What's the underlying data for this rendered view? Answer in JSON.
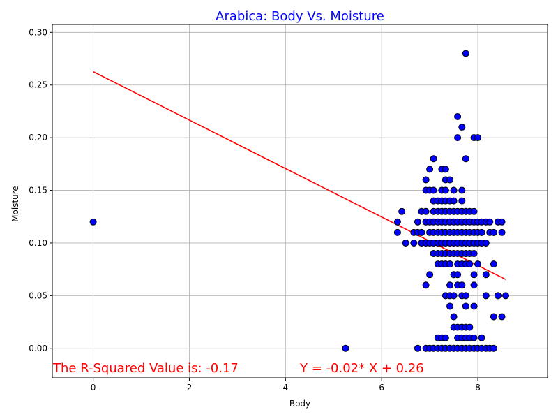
{
  "chart_data": {
    "type": "scatter",
    "title": "Arabica: Body Vs. Moisture",
    "xlabel": "Body",
    "ylabel": "Moisture",
    "xlim": [
      -0.85,
      9.45
    ],
    "ylim": [
      -0.028,
      0.3075
    ],
    "xticks": [
      0,
      2,
      4,
      6,
      8
    ],
    "xtick_labels": [
      "0",
      "2",
      "4",
      "6",
      "8"
    ],
    "yticks": [
      0.0,
      0.05,
      0.1,
      0.15,
      0.2,
      0.25,
      0.3
    ],
    "ytick_labels": [
      "0.00",
      "0.05",
      "0.10",
      "0.15",
      "0.20",
      "0.25",
      "0.30"
    ],
    "grid": true,
    "colors": {
      "points_fill": "#0000ff",
      "points_edge": "#000000",
      "line": "#ff0000",
      "title": "#0000ff",
      "annotation": "#ff0000",
      "grid": "#b0b0b0"
    },
    "regression": {
      "slope": -0.023,
      "intercept": 0.2627,
      "x_range": [
        0,
        8.58
      ]
    },
    "annotations": {
      "r_squared": "The R-Squared Value is: -0.17",
      "equation": "Y = -0.02* X + 0.26"
    },
    "points": [
      [
        0,
        0.12
      ],
      [
        5.25,
        0.0
      ],
      [
        6.33,
        0.12
      ],
      [
        6.33,
        0.11
      ],
      [
        6.42,
        0.13
      ],
      [
        6.5,
        0.1
      ],
      [
        6.67,
        0.11
      ],
      [
        6.67,
        0.1
      ],
      [
        6.75,
        0.12
      ],
      [
        6.75,
        0.11
      ],
      [
        6.75,
        0.0
      ],
      [
        6.83,
        0.13
      ],
      [
        6.83,
        0.11
      ],
      [
        6.83,
        0.1
      ],
      [
        6.92,
        0.16
      ],
      [
        6.92,
        0.15
      ],
      [
        6.92,
        0.13
      ],
      [
        6.92,
        0.12
      ],
      [
        6.92,
        0.1
      ],
      [
        6.92,
        0.06
      ],
      [
        6.92,
        0.0
      ],
      [
        7.0,
        0.17
      ],
      [
        7.0,
        0.15
      ],
      [
        7.0,
        0.12
      ],
      [
        7.0,
        0.11
      ],
      [
        7.0,
        0.1
      ],
      [
        7.0,
        0.07
      ],
      [
        7.0,
        0.0
      ],
      [
        7.08,
        0.18
      ],
      [
        7.08,
        0.15
      ],
      [
        7.08,
        0.14
      ],
      [
        7.08,
        0.13
      ],
      [
        7.08,
        0.12
      ],
      [
        7.08,
        0.11
      ],
      [
        7.08,
        0.1
      ],
      [
        7.08,
        0.09
      ],
      [
        7.08,
        0.0
      ],
      [
        7.17,
        0.14
      ],
      [
        7.17,
        0.13
      ],
      [
        7.17,
        0.12
      ],
      [
        7.17,
        0.11
      ],
      [
        7.17,
        0.1
      ],
      [
        7.17,
        0.09
      ],
      [
        7.17,
        0.08
      ],
      [
        7.17,
        0.01
      ],
      [
        7.17,
        0.0
      ],
      [
        7.25,
        0.17
      ],
      [
        7.25,
        0.15
      ],
      [
        7.25,
        0.14
      ],
      [
        7.25,
        0.13
      ],
      [
        7.25,
        0.12
      ],
      [
        7.25,
        0.11
      ],
      [
        7.25,
        0.1
      ],
      [
        7.25,
        0.09
      ],
      [
        7.25,
        0.08
      ],
      [
        7.25,
        0.01
      ],
      [
        7.25,
        0.0
      ],
      [
        7.33,
        0.17
      ],
      [
        7.33,
        0.16
      ],
      [
        7.33,
        0.15
      ],
      [
        7.33,
        0.14
      ],
      [
        7.33,
        0.13
      ],
      [
        7.33,
        0.12
      ],
      [
        7.33,
        0.11
      ],
      [
        7.33,
        0.1
      ],
      [
        7.33,
        0.09
      ],
      [
        7.33,
        0.08
      ],
      [
        7.33,
        0.05
      ],
      [
        7.33,
        0.01
      ],
      [
        7.33,
        0.0
      ],
      [
        7.42,
        0.16
      ],
      [
        7.42,
        0.14
      ],
      [
        7.42,
        0.13
      ],
      [
        7.42,
        0.12
      ],
      [
        7.42,
        0.11
      ],
      [
        7.42,
        0.1
      ],
      [
        7.42,
        0.09
      ],
      [
        7.42,
        0.08
      ],
      [
        7.42,
        0.06
      ],
      [
        7.42,
        0.05
      ],
      [
        7.42,
        0.04
      ],
      [
        7.42,
        0.0
      ],
      [
        7.5,
        0.15
      ],
      [
        7.5,
        0.14
      ],
      [
        7.5,
        0.13
      ],
      [
        7.5,
        0.12
      ],
      [
        7.5,
        0.11
      ],
      [
        7.5,
        0.1
      ],
      [
        7.5,
        0.09
      ],
      [
        7.5,
        0.07
      ],
      [
        7.5,
        0.05
      ],
      [
        7.5,
        0.03
      ],
      [
        7.5,
        0.02
      ],
      [
        7.5,
        0.0
      ],
      [
        7.58,
        0.22
      ],
      [
        7.58,
        0.2
      ],
      [
        7.58,
        0.13
      ],
      [
        7.58,
        0.12
      ],
      [
        7.58,
        0.11
      ],
      [
        7.58,
        0.1
      ],
      [
        7.58,
        0.09
      ],
      [
        7.58,
        0.08
      ],
      [
        7.58,
        0.07
      ],
      [
        7.58,
        0.06
      ],
      [
        7.58,
        0.02
      ],
      [
        7.58,
        0.01
      ],
      [
        7.58,
        0.0
      ],
      [
        7.67,
        0.21
      ],
      [
        7.67,
        0.15
      ],
      [
        7.67,
        0.14
      ],
      [
        7.67,
        0.13
      ],
      [
        7.67,
        0.12
      ],
      [
        7.67,
        0.11
      ],
      [
        7.67,
        0.1
      ],
      [
        7.67,
        0.09
      ],
      [
        7.67,
        0.08
      ],
      [
        7.67,
        0.06
      ],
      [
        7.67,
        0.05
      ],
      [
        7.67,
        0.02
      ],
      [
        7.67,
        0.01
      ],
      [
        7.67,
        0.0
      ],
      [
        7.75,
        0.28
      ],
      [
        7.75,
        0.18
      ],
      [
        7.75,
        0.13
      ],
      [
        7.75,
        0.12
      ],
      [
        7.75,
        0.11
      ],
      [
        7.75,
        0.1
      ],
      [
        7.75,
        0.09
      ],
      [
        7.75,
        0.08
      ],
      [
        7.75,
        0.05
      ],
      [
        7.75,
        0.04
      ],
      [
        7.75,
        0.02
      ],
      [
        7.75,
        0.01
      ],
      [
        7.75,
        0.0
      ],
      [
        7.83,
        0.13
      ],
      [
        7.83,
        0.12
      ],
      [
        7.83,
        0.11
      ],
      [
        7.83,
        0.1
      ],
      [
        7.83,
        0.09
      ],
      [
        7.83,
        0.08
      ],
      [
        7.83,
        0.02
      ],
      [
        7.83,
        0.01
      ],
      [
        7.83,
        0.0
      ],
      [
        7.92,
        0.2
      ],
      [
        7.92,
        0.13
      ],
      [
        7.92,
        0.12
      ],
      [
        7.92,
        0.11
      ],
      [
        7.92,
        0.1
      ],
      [
        7.92,
        0.09
      ],
      [
        7.92,
        0.07
      ],
      [
        7.92,
        0.06
      ],
      [
        7.92,
        0.04
      ],
      [
        7.92,
        0.01
      ],
      [
        7.92,
        0.0
      ],
      [
        8.0,
        0.2
      ],
      [
        8.0,
        0.12
      ],
      [
        8.0,
        0.11
      ],
      [
        8.0,
        0.1
      ],
      [
        8.0,
        0.08
      ],
      [
        8.0,
        0.0
      ],
      [
        8.08,
        0.12
      ],
      [
        8.08,
        0.11
      ],
      [
        8.08,
        0.1
      ],
      [
        8.08,
        0.01
      ],
      [
        8.08,
        0.0
      ],
      [
        8.17,
        0.12
      ],
      [
        8.17,
        0.1
      ],
      [
        8.17,
        0.07
      ],
      [
        8.17,
        0.05
      ],
      [
        8.17,
        0.0
      ],
      [
        8.25,
        0.12
      ],
      [
        8.25,
        0.11
      ],
      [
        8.25,
        0.0
      ],
      [
        8.33,
        0.11
      ],
      [
        8.33,
        0.08
      ],
      [
        8.33,
        0.03
      ],
      [
        8.33,
        0.0
      ],
      [
        8.42,
        0.12
      ],
      [
        8.42,
        0.05
      ],
      [
        8.5,
        0.12
      ],
      [
        8.5,
        0.11
      ],
      [
        8.5,
        0.03
      ],
      [
        8.58,
        0.05
      ]
    ]
  }
}
